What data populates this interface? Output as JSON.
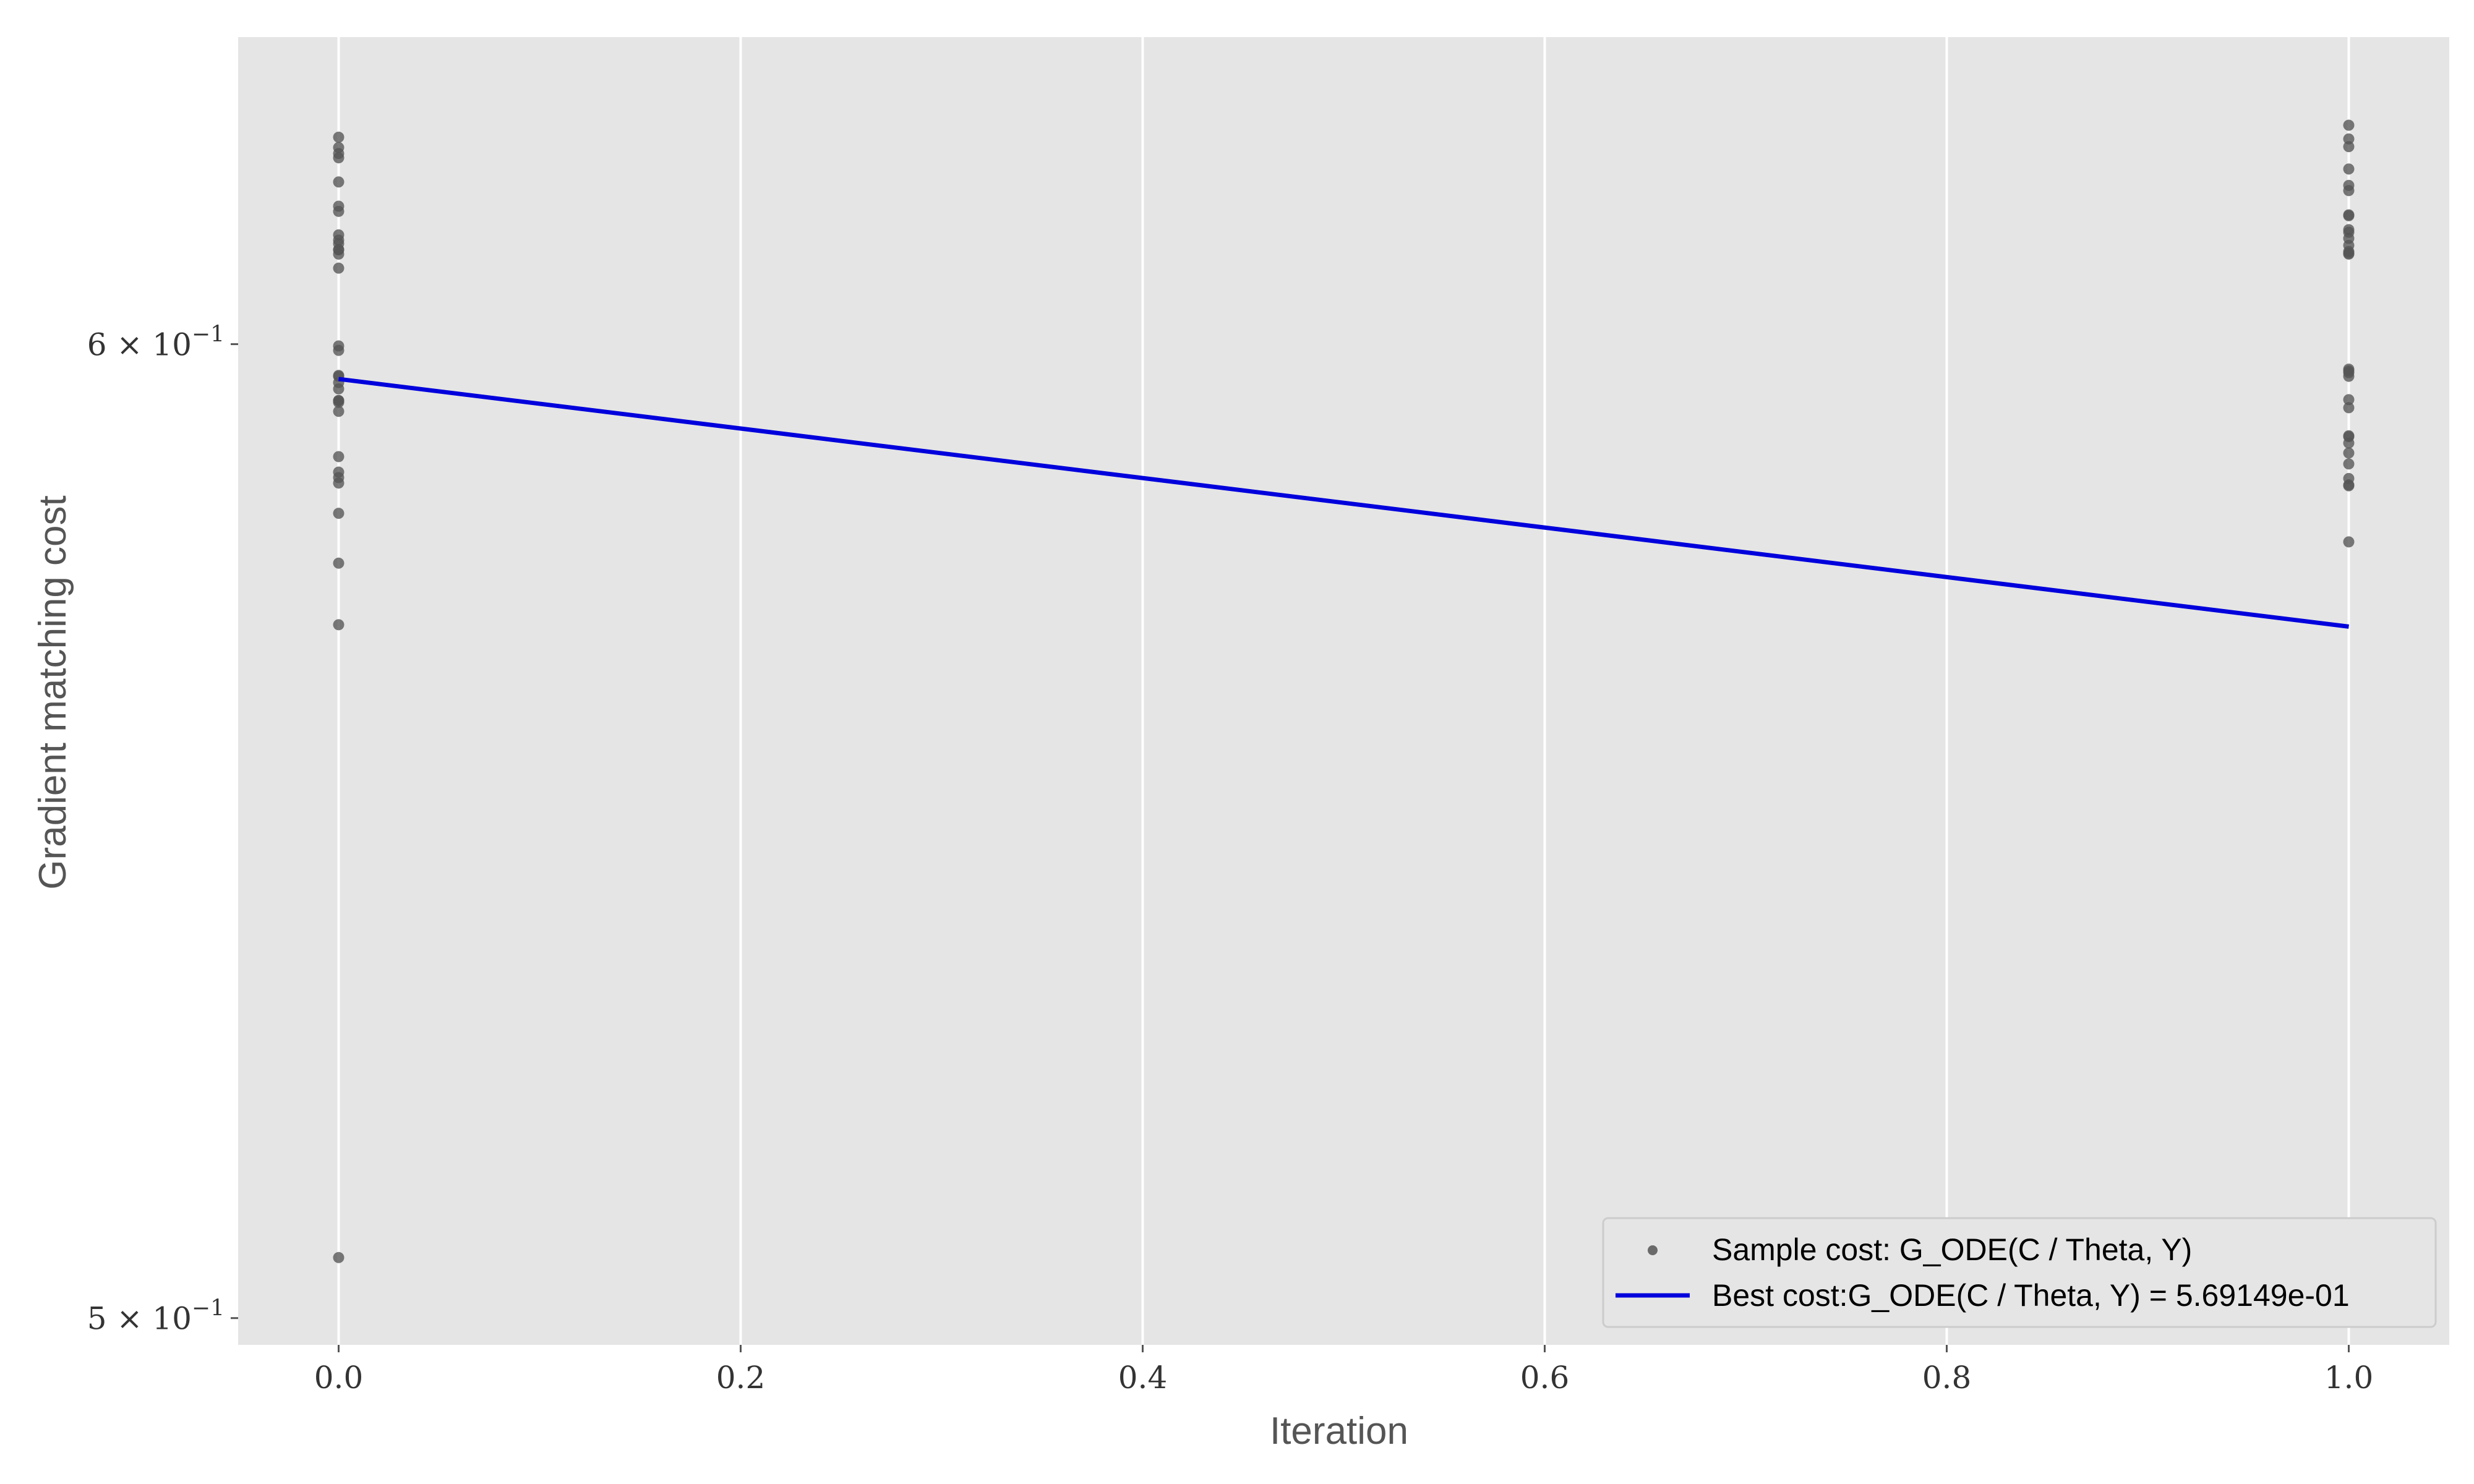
{
  "chart_data": {
    "type": "scatter",
    "xlabel": "Iteration",
    "ylabel": "Gradient matching cost",
    "xlim": [
      -0.05,
      1.05
    ],
    "ylim": [
      0.4975,
      0.6355
    ],
    "y_scale": "log",
    "grid": "vertical only",
    "background": "#e5e5e5",
    "x_ticks": [
      {
        "value": 0.0,
        "label": "0.0"
      },
      {
        "value": 0.2,
        "label": "0.2"
      },
      {
        "value": 0.4,
        "label": "0.4"
      },
      {
        "value": 0.6,
        "label": "0.6"
      },
      {
        "value": 0.8,
        "label": "0.8"
      },
      {
        "value": 1.0,
        "label": "1.0"
      }
    ],
    "y_ticks": [
      {
        "value": 0.5,
        "mantissa": "5",
        "exponent": "−1"
      },
      {
        "value": 0.6,
        "mantissa": "6",
        "exponent": "−1"
      }
    ],
    "series": [
      {
        "name": "Sample cost: G_ODE(C / Theta, Y)",
        "kind": "scatter",
        "color": "#555555",
        "points": [
          [
            0,
            0.6237
          ],
          [
            0,
            0.6225
          ],
          [
            0,
            0.6218
          ],
          [
            0,
            0.6213
          ],
          [
            0,
            0.6185
          ],
          [
            0,
            0.6157
          ],
          [
            0,
            0.6151
          ],
          [
            0,
            0.6124
          ],
          [
            0,
            0.6118
          ],
          [
            0,
            0.6114
          ],
          [
            0,
            0.6107
          ],
          [
            0,
            0.6107
          ],
          [
            0,
            0.6102
          ],
          [
            0,
            0.6086
          ],
          [
            0,
            0.5998
          ],
          [
            0,
            0.5993
          ],
          [
            0,
            0.5965
          ],
          [
            0,
            0.5964
          ],
          [
            0,
            0.5957
          ],
          [
            0,
            0.595
          ],
          [
            0,
            0.5937
          ],
          [
            0,
            0.5937
          ],
          [
            0,
            0.5935
          ],
          [
            0,
            0.5925
          ],
          [
            0,
            0.5875
          ],
          [
            0,
            0.5858
          ],
          [
            0,
            0.5852
          ],
          [
            0,
            0.5846
          ],
          [
            0,
            0.5813
          ],
          [
            0,
            0.5759
          ],
          [
            0,
            0.5693
          ],
          [
            0,
            0.5057
          ],
          [
            1,
            0.6251
          ],
          [
            1,
            0.6235
          ],
          [
            1,
            0.6226
          ],
          [
            1,
            0.62
          ],
          [
            1,
            0.6181
          ],
          [
            1,
            0.6175
          ],
          [
            1,
            0.6147
          ],
          [
            1,
            0.6146
          ],
          [
            1,
            0.613
          ],
          [
            1,
            0.6127
          ],
          [
            1,
            0.612
          ],
          [
            1,
            0.6112
          ],
          [
            1,
            0.6105
          ],
          [
            1,
            0.6103
          ],
          [
            1,
            0.6102
          ],
          [
            1,
            0.5972
          ],
          [
            1,
            0.597
          ],
          [
            1,
            0.5968
          ],
          [
            1,
            0.5964
          ],
          [
            1,
            0.5938
          ],
          [
            1,
            0.5929
          ],
          [
            1,
            0.5898
          ],
          [
            1,
            0.5897
          ],
          [
            1,
            0.589
          ],
          [
            1,
            0.5879
          ],
          [
            1,
            0.5867
          ],
          [
            1,
            0.5851
          ],
          [
            1,
            0.5844
          ],
          [
            1,
            0.5843
          ],
          [
            1,
            0.5782
          ]
        ]
      },
      {
        "name": "Best cost:G_ODE(C / Theta, Y) = 5.69149e-01",
        "kind": "line",
        "color": "#0000dd",
        "x": [
          0,
          1
        ],
        "y": [
          0.5961,
          0.5691
        ]
      }
    ],
    "legend": {
      "position": "bottom-right",
      "entries": [
        "Sample cost: G_ODE(C / Theta, Y)",
        "Best cost:G_ODE(C / Theta, Y) = 5.69149e-01"
      ]
    }
  }
}
